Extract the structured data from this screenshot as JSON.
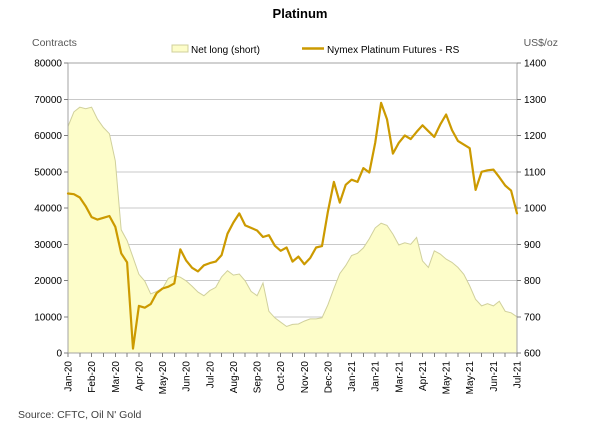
{
  "title": "Platinum",
  "source": "Source: CFTC, Oil N' Gold",
  "legend": [
    {
      "label": "Net long (short)",
      "swatch": "area-swatch"
    },
    {
      "label": "Nymex Platinum Futures - RS",
      "swatch": "line-swatch"
    }
  ],
  "colors": {
    "area_fill": "#FDFDC9",
    "area_border": "#D0D09C",
    "line": "#CC9A00",
    "grid": "#C9C9C9",
    "axis_box": "#A3A3A3",
    "axis_title_text": "#595959",
    "source_text": "#404040"
  },
  "chart_data": {
    "type": "combo",
    "title": "Platinum",
    "x_tick_labels": [
      "Jan-20",
      "Feb-20",
      "Mar-20",
      "Apr-20",
      "May-20",
      "Jun-20",
      "Jul-20",
      "Aug-20",
      "Sep-20",
      "Oct-20",
      "Nov-20",
      "Dec-20",
      "Jan-21",
      "Jan-21",
      "Mar-21",
      "Apr-21",
      "May-21",
      "May-21",
      "Jun-21",
      "Jul-21"
    ],
    "x_tick_step": 4,
    "left_axis": {
      "title": "Contracts",
      "min": 0,
      "max": 80000,
      "step": 10000,
      "tick_labels": [
        "0",
        "10000",
        "20000",
        "30000",
        "40000",
        "50000",
        "60000",
        "70000",
        "80000"
      ]
    },
    "right_axis": {
      "title": "US$/oz",
      "min": 600,
      "max": 1400,
      "step": 100,
      "tick_labels": [
        "600",
        "700",
        "800",
        "900",
        "1000",
        "1100",
        "1200",
        "1300",
        "1400"
      ]
    },
    "grid": "horizontal",
    "legend_position": "top",
    "series": [
      {
        "name": "Net long (short)",
        "type": "area",
        "axis": "left",
        "fill": "#FDFDC9",
        "border": "#D0D09C",
        "values": [
          62500,
          66500,
          67800,
          67400,
          67800,
          64500,
          62200,
          60500,
          53000,
          34000,
          31000,
          26400,
          21700,
          19800,
          16300,
          17000,
          17800,
          20600,
          21300,
          20900,
          19900,
          18400,
          16800,
          15800,
          17200,
          18100,
          21000,
          22700,
          21500,
          21800,
          19900,
          17000,
          15800,
          19300,
          11500,
          9700,
          8500,
          7300,
          7900,
          8000,
          8800,
          9400,
          9400,
          9700,
          13300,
          17800,
          21900,
          24100,
          26900,
          27500,
          29000,
          31500,
          34500,
          35800,
          35200,
          32800,
          29800,
          30400,
          30000,
          31900,
          25400,
          23600,
          28200,
          27300,
          25900,
          25000,
          23600,
          21700,
          18500,
          14800,
          13000,
          13600,
          13000,
          14300,
          11500,
          11100,
          10000
        ]
      },
      {
        "name": "Nymex Platinum Futures - RS",
        "type": "line",
        "axis": "right",
        "color": "#CC9A00",
        "values": [
          1040,
          1038,
          1029,
          1005,
          975,
          968,
          973,
          978,
          948,
          875,
          850,
          612,
          730,
          725,
          735,
          765,
          778,
          783,
          792,
          886,
          855,
          835,
          825,
          842,
          848,
          852,
          870,
          929,
          960,
          985,
          952,
          945,
          938,
          920,
          925,
          896,
          882,
          891,
          852,
          866,
          845,
          862,
          891,
          895,
          990,
          1072,
          1015,
          1064,
          1078,
          1072,
          1110,
          1098,
          1180,
          1290,
          1245,
          1150,
          1180,
          1200,
          1190,
          1210,
          1228,
          1212,
          1196,
          1230,
          1258,
          1215,
          1185,
          1175,
          1165,
          1050,
          1100,
          1104,
          1106,
          1085,
          1062,
          1048,
          985
        ]
      }
    ]
  }
}
